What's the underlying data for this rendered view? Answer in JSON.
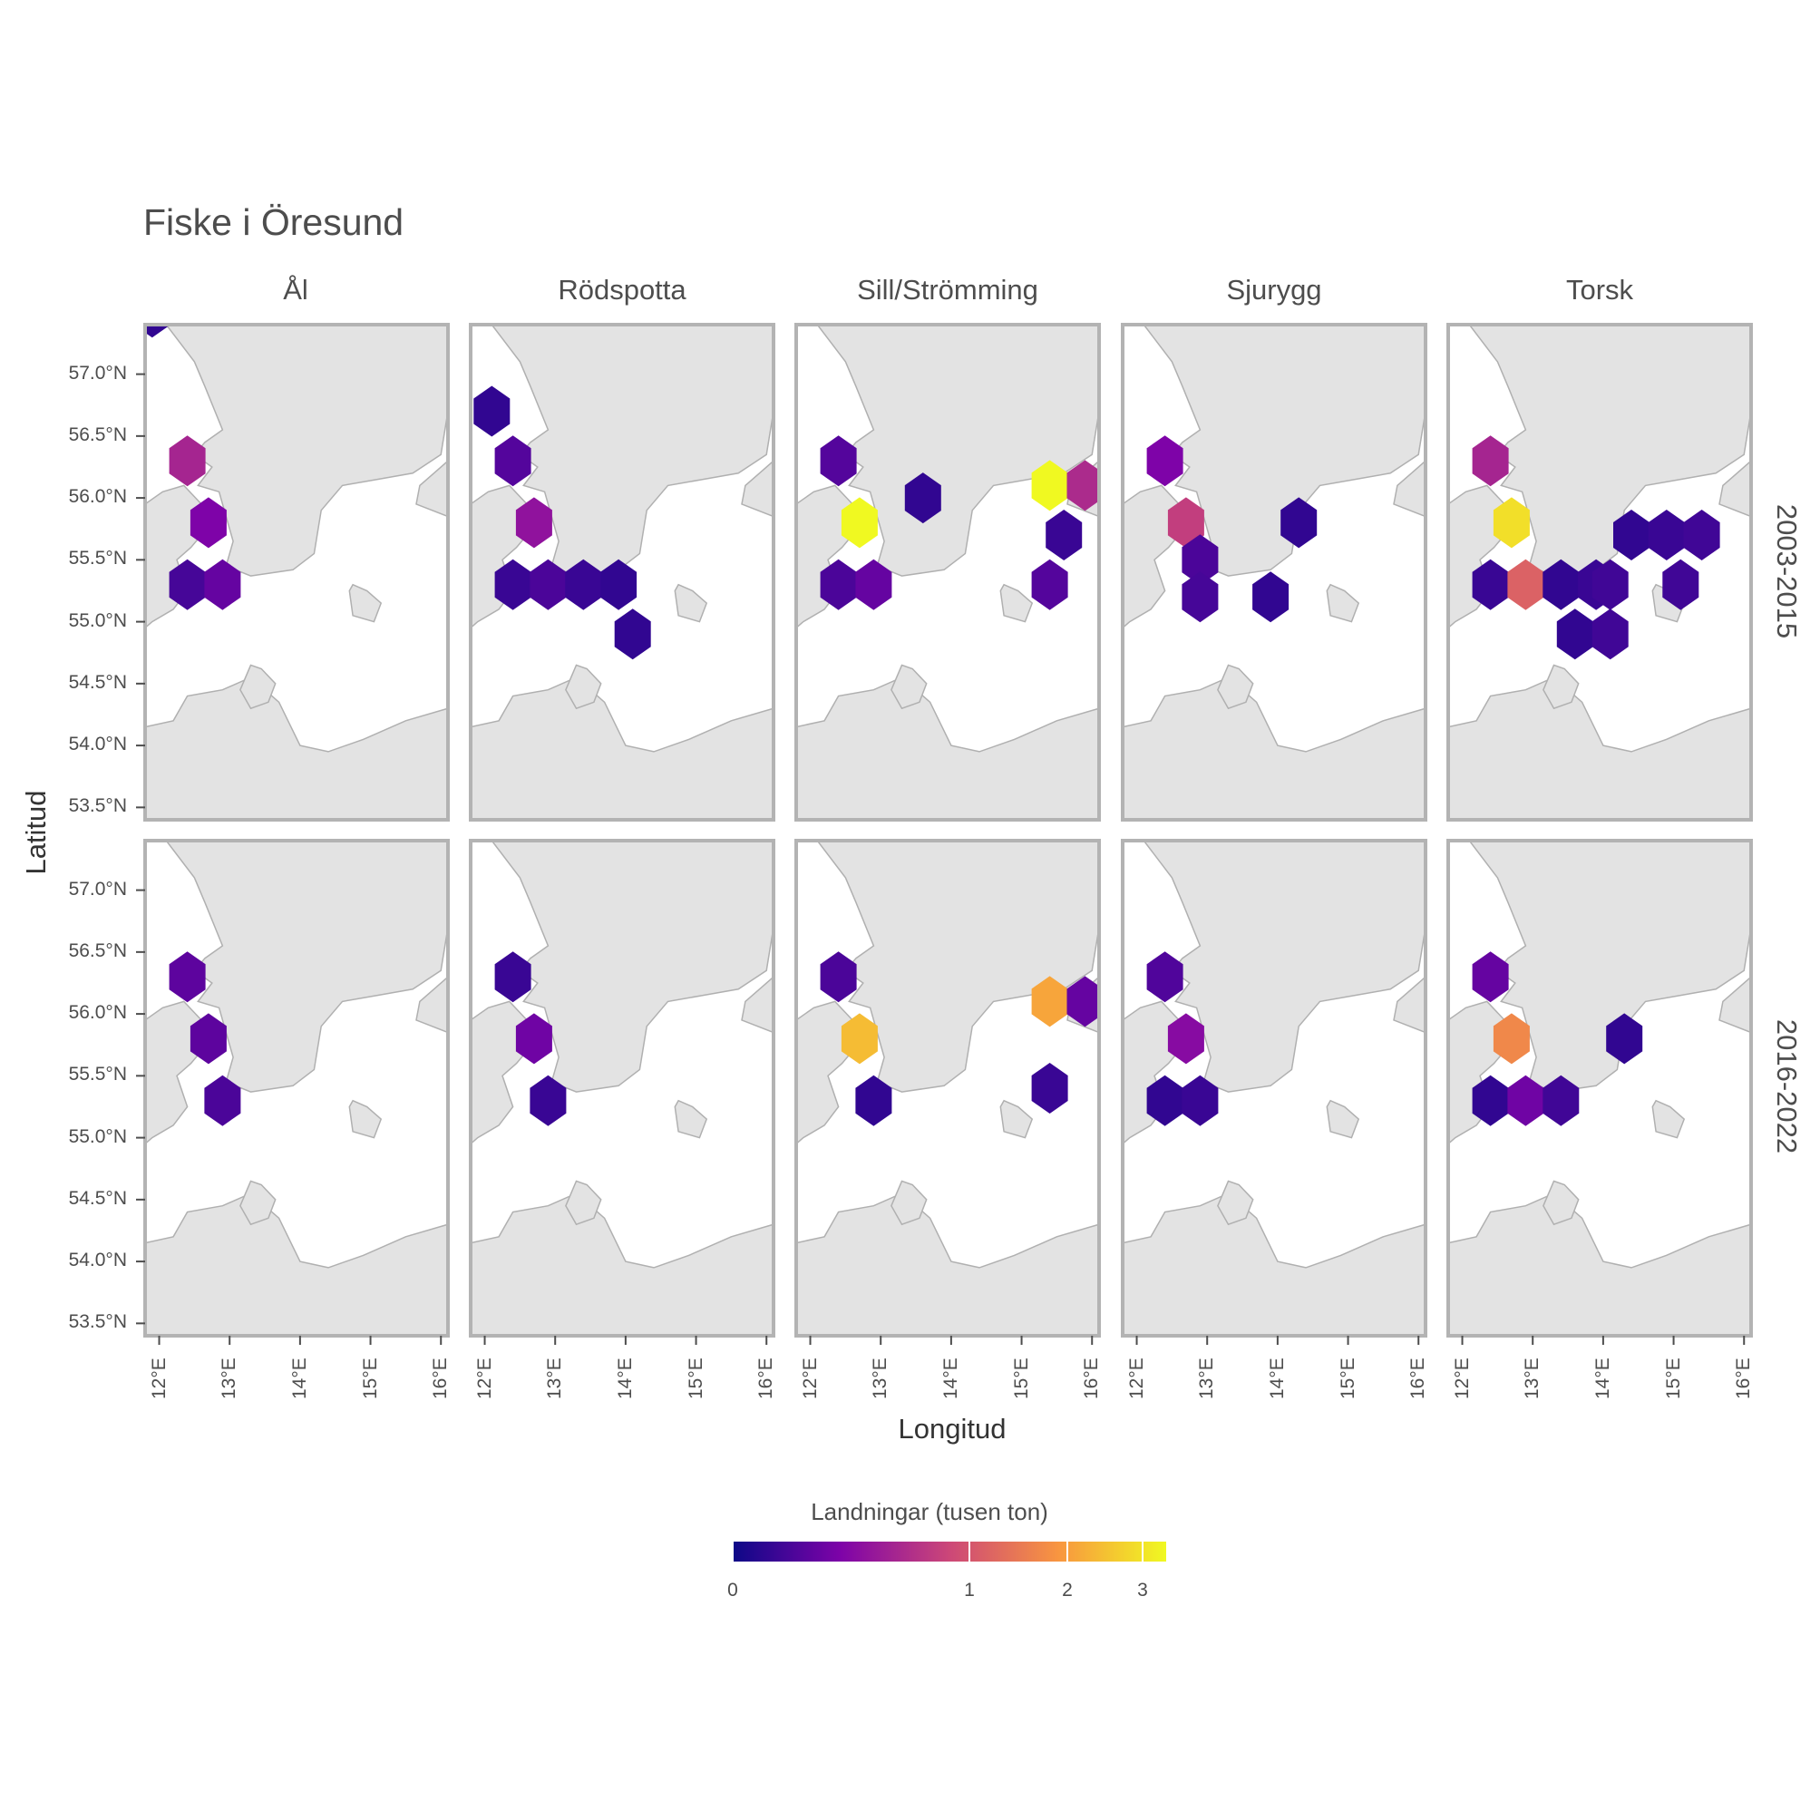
{
  "title": "Fiske i Öresund",
  "species": [
    "Ål",
    "Rödspotta",
    "Sill/Strömming",
    "Sjurygg",
    "Torsk"
  ],
  "periods": [
    "2003-2015",
    "2016-2022"
  ],
  "axes": {
    "x_title": "Longitud",
    "y_title": "Latitud",
    "x_ticks": [
      "12°E",
      "13°E",
      "14°E",
      "15°E",
      "16°E"
    ],
    "y_ticks": [
      "57.0°N",
      "56.5°N",
      "56.0°N",
      "55.5°N",
      "55.0°N",
      "54.5°N",
      "54.0°N",
      "53.5°N"
    ],
    "x_range": [
      11.8,
      16.1
    ],
    "y_range": [
      53.4,
      57.4
    ]
  },
  "legend": {
    "title": "Landningar (tusen ton)",
    "tick_labels": [
      "0",
      "1",
      "2",
      "3"
    ],
    "scale": "sqrt",
    "palette": "plasma",
    "colors": [
      "#0d0887",
      "#7e03a8",
      "#cc4778",
      "#f89540",
      "#f0f921"
    ]
  },
  "chart_data": {
    "type": "heatmap",
    "value_unit": "tusen ton",
    "cells": {
      "Ål|2003-2015": [
        {
          "lon": 12.4,
          "lat": 56.3,
          "v": 0.45
        },
        {
          "lon": 12.7,
          "lat": 55.8,
          "v": 0.2
        },
        {
          "lon": 12.4,
          "lat": 55.3,
          "v": 0.05
        },
        {
          "lon": 12.9,
          "lat": 55.3,
          "v": 0.12
        },
        {
          "lon": 11.9,
          "lat": 57.5,
          "v": 0.02
        }
      ],
      "Ål|2016-2022": [
        {
          "lon": 12.4,
          "lat": 56.3,
          "v": 0.1
        },
        {
          "lon": 12.7,
          "lat": 55.8,
          "v": 0.1
        },
        {
          "lon": 12.9,
          "lat": 55.3,
          "v": 0.06
        }
      ],
      "Rödspotta|2003-2015": [
        {
          "lon": 12.1,
          "lat": 56.7,
          "v": 0.02
        },
        {
          "lon": 12.4,
          "lat": 56.3,
          "v": 0.08
        },
        {
          "lon": 12.7,
          "lat": 55.8,
          "v": 0.3
        },
        {
          "lon": 12.4,
          "lat": 55.3,
          "v": 0.03
        },
        {
          "lon": 12.9,
          "lat": 55.3,
          "v": 0.06
        },
        {
          "lon": 13.4,
          "lat": 55.3,
          "v": 0.03
        },
        {
          "lon": 13.9,
          "lat": 55.3,
          "v": 0.02
        },
        {
          "lon": 14.1,
          "lat": 54.9,
          "v": 0.02
        }
      ],
      "Rödspotta|2016-2022": [
        {
          "lon": 12.4,
          "lat": 56.3,
          "v": 0.03
        },
        {
          "lon": 12.7,
          "lat": 55.8,
          "v": 0.15
        },
        {
          "lon": 12.9,
          "lat": 55.3,
          "v": 0.03
        }
      ],
      "Sill/Strömming|2003-2015": [
        {
          "lon": 12.4,
          "lat": 56.3,
          "v": 0.08
        },
        {
          "lon": 12.7,
          "lat": 55.8,
          "v": 3.2
        },
        {
          "lon": 12.4,
          "lat": 55.3,
          "v": 0.06
        },
        {
          "lon": 12.9,
          "lat": 55.3,
          "v": 0.12
        },
        {
          "lon": 15.4,
          "lat": 56.1,
          "v": 3.2
        },
        {
          "lon": 15.9,
          "lat": 56.1,
          "v": 0.5
        },
        {
          "lon": 15.6,
          "lat": 55.7,
          "v": 0.03
        },
        {
          "lon": 15.4,
          "lat": 55.3,
          "v": 0.08
        },
        {
          "lon": 13.6,
          "lat": 56.0,
          "v": 0.02
        }
      ],
      "Sill/Strömming|2016-2022": [
        {
          "lon": 12.4,
          "lat": 56.3,
          "v": 0.06
        },
        {
          "lon": 12.7,
          "lat": 55.8,
          "v": 2.3
        },
        {
          "lon": 12.9,
          "lat": 55.3,
          "v": 0.02
        },
        {
          "lon": 15.4,
          "lat": 56.1,
          "v": 2.0
        },
        {
          "lon": 15.9,
          "lat": 56.1,
          "v": 0.12
        },
        {
          "lon": 15.4,
          "lat": 55.4,
          "v": 0.03
        }
      ],
      "Sjurygg|2003-2015": [
        {
          "lon": 12.4,
          "lat": 56.3,
          "v": 0.2
        },
        {
          "lon": 12.7,
          "lat": 55.8,
          "v": 0.7
        },
        {
          "lon": 12.9,
          "lat": 55.5,
          "v": 0.06
        },
        {
          "lon": 12.9,
          "lat": 55.2,
          "v": 0.05
        },
        {
          "lon": 13.9,
          "lat": 55.2,
          "v": 0.02
        },
        {
          "lon": 14.3,
          "lat": 55.8,
          "v": 0.02
        }
      ],
      "Sjurygg|2016-2022": [
        {
          "lon": 12.4,
          "lat": 56.3,
          "v": 0.07
        },
        {
          "lon": 12.7,
          "lat": 55.8,
          "v": 0.25
        },
        {
          "lon": 12.4,
          "lat": 55.3,
          "v": 0.02
        },
        {
          "lon": 12.9,
          "lat": 55.3,
          "v": 0.03
        }
      ],
      "Torsk|2003-2015": [
        {
          "lon": 12.4,
          "lat": 56.3,
          "v": 0.45
        },
        {
          "lon": 12.7,
          "lat": 55.8,
          "v": 2.8
        },
        {
          "lon": 12.4,
          "lat": 55.3,
          "v": 0.03
        },
        {
          "lon": 12.9,
          "lat": 55.3,
          "v": 1.1
        },
        {
          "lon": 13.4,
          "lat": 55.3,
          "v": 0.02
        },
        {
          "lon": 13.9,
          "lat": 55.3,
          "v": 0.03
        },
        {
          "lon": 14.1,
          "lat": 55.3,
          "v": 0.04
        },
        {
          "lon": 13.6,
          "lat": 54.9,
          "v": 0.02
        },
        {
          "lon": 14.1,
          "lat": 54.9,
          "v": 0.04
        },
        {
          "lon": 14.4,
          "lat": 55.7,
          "v": 0.02
        },
        {
          "lon": 14.9,
          "lat": 55.7,
          "v": 0.03
        },
        {
          "lon": 15.4,
          "lat": 55.7,
          "v": 0.04
        },
        {
          "lon": 15.1,
          "lat": 55.3,
          "v": 0.04
        }
      ],
      "Torsk|2016-2022": [
        {
          "lon": 12.4,
          "lat": 56.3,
          "v": 0.12
        },
        {
          "lon": 12.7,
          "lat": 55.8,
          "v": 1.6
        },
        {
          "lon": 12.4,
          "lat": 55.3,
          "v": 0.02
        },
        {
          "lon": 12.9,
          "lat": 55.3,
          "v": 0.15
        },
        {
          "lon": 13.4,
          "lat": 55.3,
          "v": 0.04
        },
        {
          "lon": 14.3,
          "lat": 55.8,
          "v": 0.02
        }
      ]
    }
  }
}
